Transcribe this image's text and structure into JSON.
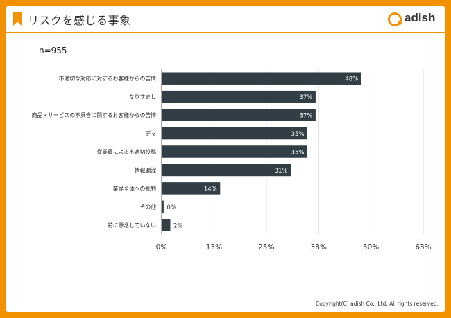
{
  "header": {
    "title": "リスクを感じる事象",
    "logo_text": "adish"
  },
  "sample_label": "n=955",
  "footer": {
    "copyright": "Copyright(C) adish Co., Ltd. All rights reserved."
  },
  "colors": {
    "accent": "#f39200",
    "bar": "#323e46",
    "grid": "#d9d9d9"
  },
  "chart_data": {
    "type": "bar",
    "orientation": "horizontal",
    "categories": [
      "不適切な対応に対するお客様からの苦情",
      "なりすまし",
      "商品・サービスの不具合に関するお客様からの苦情",
      "デマ",
      "従業員による不適切投稿",
      "情報漏洩",
      "業界全体への批判",
      "その他",
      "特に懸念していない"
    ],
    "values": [
      48,
      37,
      37,
      35,
      35,
      31,
      14,
      0.4,
      2
    ],
    "value_labels": [
      "48%",
      "37%",
      "37%",
      "35%",
      "35%",
      "31%",
      "14%",
      "0%",
      "2%"
    ],
    "xlim": [
      0,
      63
    ],
    "xticks": [
      0,
      12.6,
      25.2,
      37.8,
      50.4,
      63
    ],
    "xtick_labels": [
      "0%",
      "13%",
      "25%",
      "38%",
      "50%",
      "63%"
    ],
    "grid": true,
    "legend": "none"
  }
}
